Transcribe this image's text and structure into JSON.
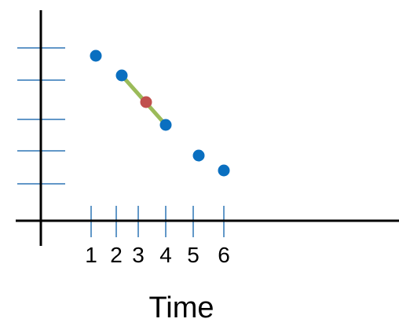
{
  "chart_data": {
    "type": "scatter",
    "title": "",
    "xlabel": "Time",
    "ylabel": "",
    "x_ticks": [
      "1",
      "2",
      "3",
      "4",
      "5",
      "6"
    ],
    "y_ticks_count": 5,
    "points": [
      {
        "x": 1,
        "y": 5.3
      },
      {
        "x": 2,
        "y": 4.6
      },
      {
        "x": 4,
        "y": 3.0
      },
      {
        "x": 5,
        "y": 2.0
      },
      {
        "x": 6,
        "y": 1.5
      }
    ],
    "segment": {
      "from": {
        "x": 2,
        "y": 4.6
      },
      "to": {
        "x": 4,
        "y": 3.0
      }
    },
    "midpoint": {
      "x": 3,
      "y": 3.8
    },
    "grid": false,
    "colors": {
      "axis": "#000000",
      "tick": "#2e75b6",
      "point": "#0a6fc0",
      "segment": "#9bbb59",
      "midpoint": "#c0504d",
      "text": "#000000"
    }
  }
}
